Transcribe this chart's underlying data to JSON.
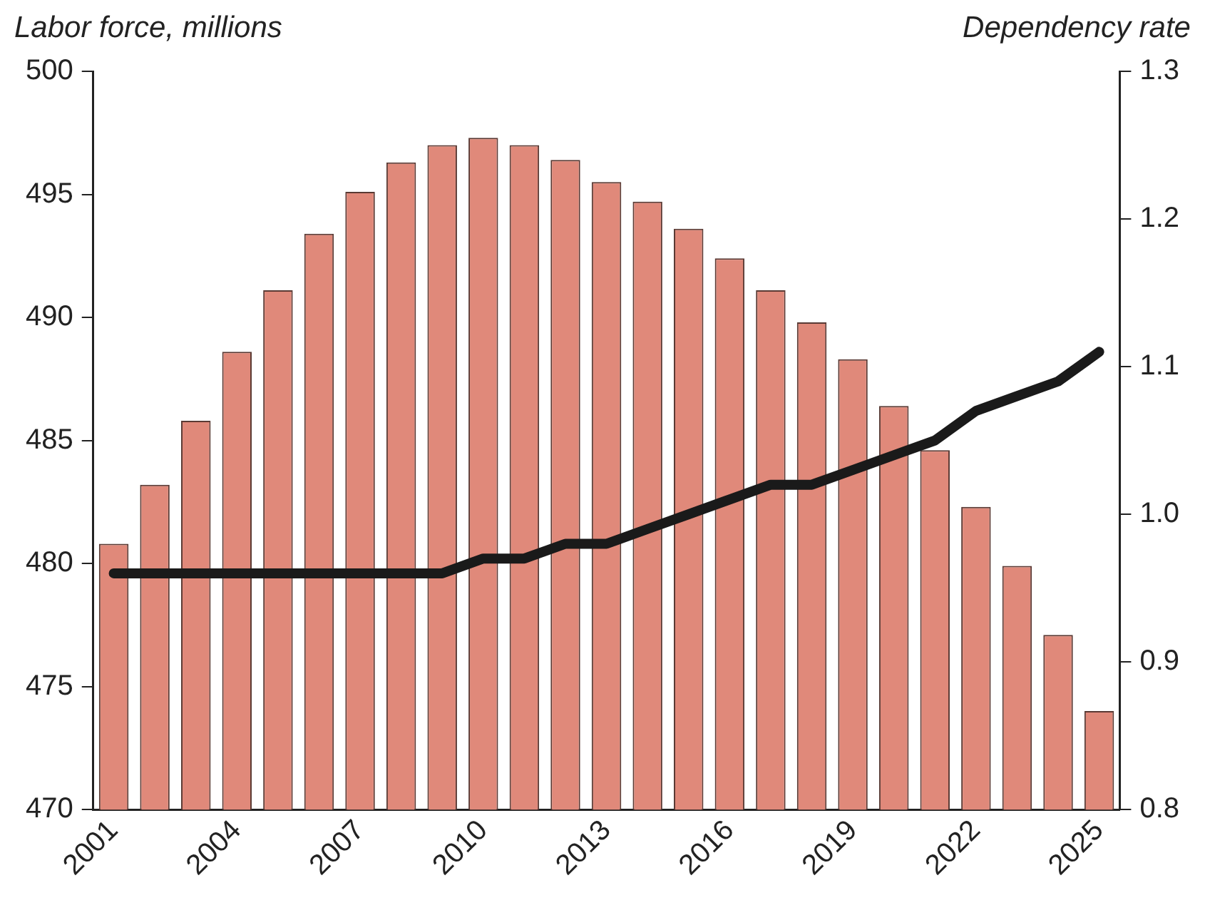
{
  "chart_data": {
    "type": "bar",
    "ylabel": "Labor force, millions",
    "y2label": "Dependency rate",
    "categories": [
      "2001",
      null,
      null,
      "2004",
      null,
      null,
      "2007",
      null,
      null,
      "2010",
      null,
      null,
      "2013",
      null,
      null,
      "2016",
      null,
      null,
      "2019",
      null,
      null,
      "2022",
      null,
      null,
      "2025"
    ],
    "series": [
      {
        "color": "#e0897a",
        "values": [
          480.8,
          483.2,
          485.8,
          488.6,
          491.1,
          493.4,
          495.1,
          496.3,
          497.0,
          497.3,
          497.0,
          496.4,
          495.5,
          494.7,
          493.6,
          492.4,
          491.1,
          489.8,
          488.3,
          486.4,
          484.6,
          482.3,
          479.9,
          477.1,
          474.0
        ]
      },
      {
        "type": "line",
        "axis": "y2",
        "color": "#1a1a1a",
        "values": [
          0.96,
          0.96,
          0.96,
          0.96,
          0.96,
          0.96,
          0.96,
          0.96,
          0.96,
          0.97,
          0.97,
          0.98,
          0.98,
          0.99,
          1.0,
          1.01,
          1.02,
          1.02,
          1.03,
          1.04,
          1.05,
          1.07,
          1.08,
          1.09,
          1.11
        ]
      }
    ],
    "ylim": [
      470,
      500
    ],
    "yticks": [
      470,
      475,
      480,
      485,
      490,
      495,
      500
    ],
    "y2lim": [
      0.8,
      1.3
    ],
    "y2ticks": [
      0.8,
      0.9,
      {
        "value": 1.0,
        "label": "1.0"
      },
      1.1,
      1.2,
      1.3
    ],
    "grid": false,
    "legend": false,
    "marker": "none",
    "line_style": "solid"
  }
}
